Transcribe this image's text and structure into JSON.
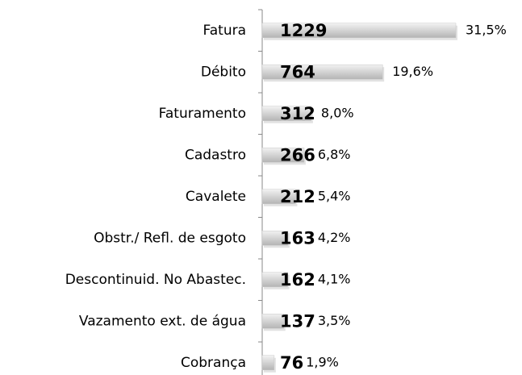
{
  "chart_data": {
    "type": "bar",
    "orientation": "horizontal",
    "categories": [
      "Fatura",
      "Débito",
      "Faturamento",
      "Cadastro",
      "Cavalete",
      "Obstr./ Refl. de esgoto",
      "Descontinuid. No Abastec.",
      "Vazamento ext. de água",
      "Cobrança"
    ],
    "values": [
      1229,
      764,
      312,
      266,
      212,
      163,
      162,
      137,
      76
    ],
    "share_labels": [
      "31,5%",
      "19,6%",
      "8,0%",
      "6,8%",
      "5,4%",
      "4,2%",
      "4,1%",
      "3,5%",
      "1,9%"
    ],
    "color": "#c8c8c8"
  }
}
